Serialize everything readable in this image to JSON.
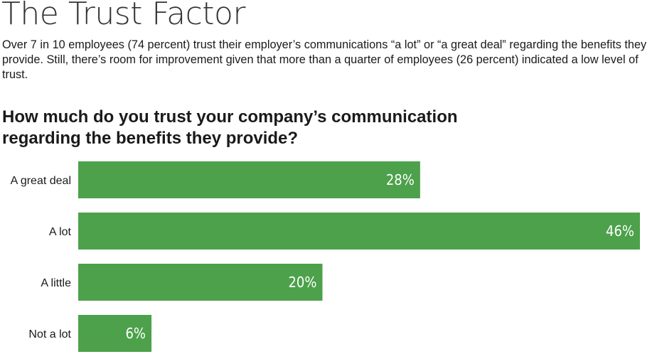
{
  "header": {
    "title": "The Trust Factor",
    "intro": "Over 7 in 10 employees (74 percent) trust their employer’s communications “a lot” or “a great deal” regarding the benefits they provide. Still, there’s room for improvement given that more than a quarter of employees (26 percent) indicated a low level of trust.",
    "question": "How much do you trust your company’s communication regarding the benefits they provide?"
  },
  "colors": {
    "bar": "#4ca14a",
    "value_text": "#ffffff"
  },
  "chart_data": {
    "type": "bar",
    "orientation": "horizontal",
    "categories": [
      "A great deal",
      "A lot",
      "A little",
      "Not a lot"
    ],
    "values": [
      28,
      46,
      20,
      6
    ],
    "value_labels": [
      "28%",
      "46%",
      "20%",
      "6%"
    ],
    "title": "How much do you trust your company’s communication regarding the benefits they provide?",
    "xlabel": "",
    "ylabel": "",
    "unit": "%",
    "xlim": [
      0,
      46
    ],
    "grid": false,
    "legend": "none"
  }
}
